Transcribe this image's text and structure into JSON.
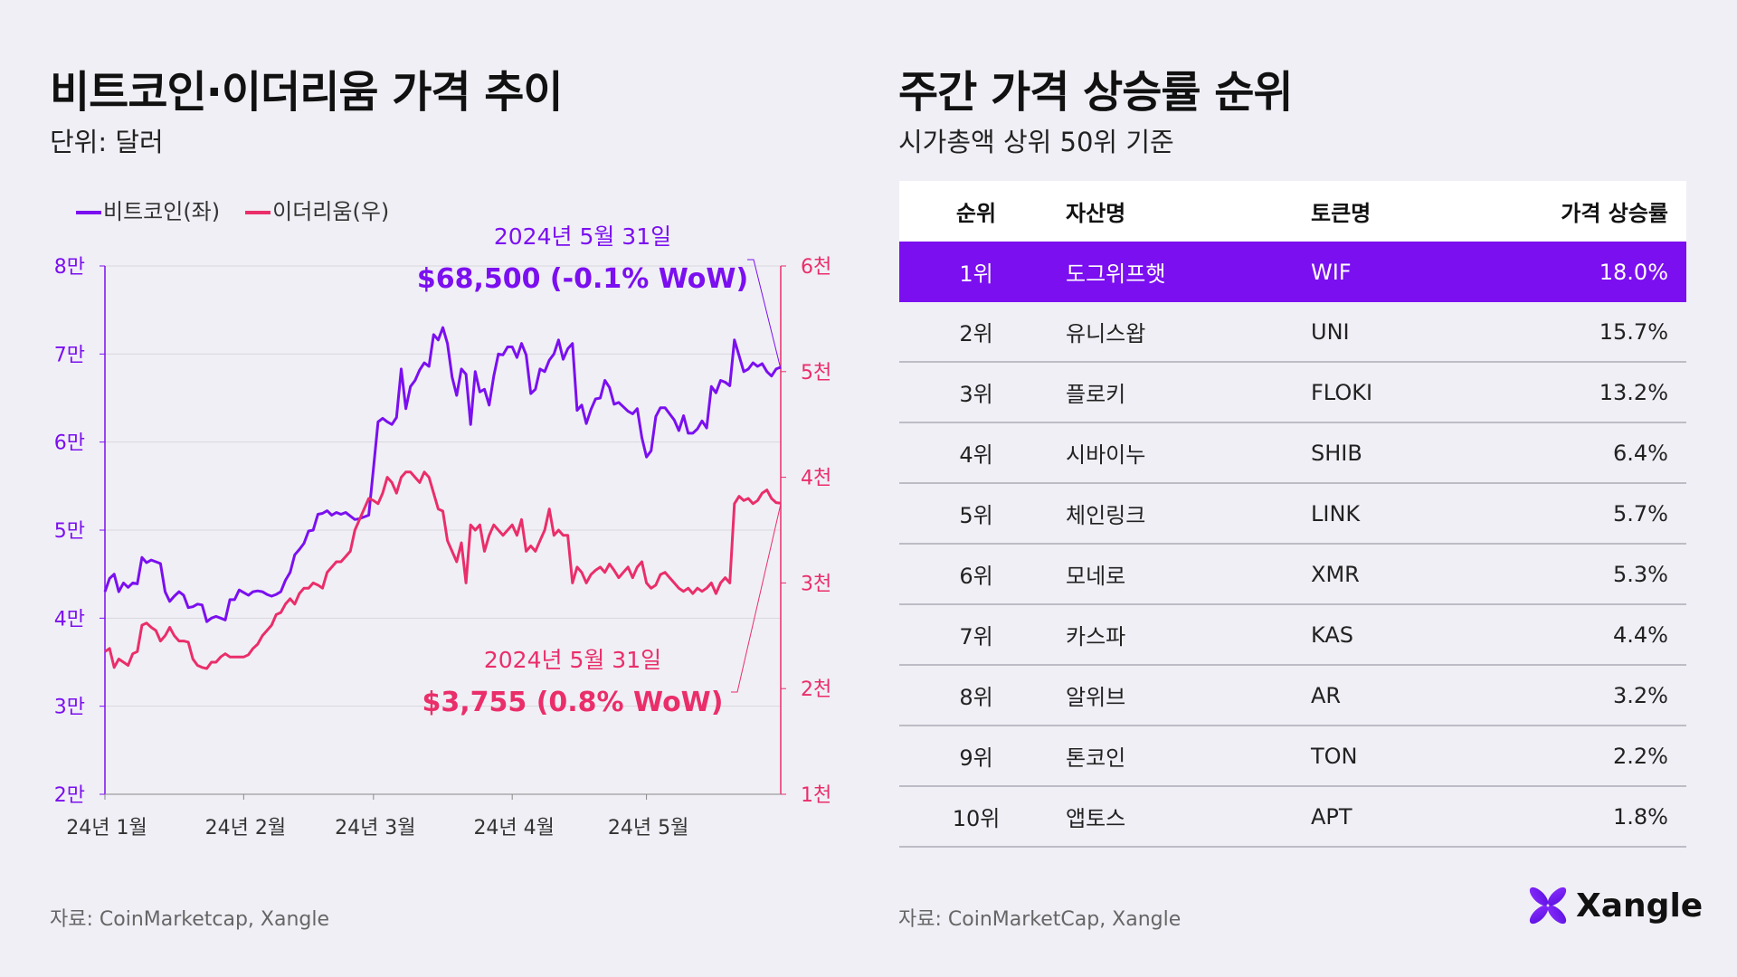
{
  "left": {
    "title": "비트코인·이더리움 가격 추이",
    "subtitle": "단위: 달러",
    "source": "자료: CoinMarketcap, Xangle"
  },
  "right": {
    "title": "주간 가격 상승률 순위",
    "subtitle": "시가총액 상위 50위 기준",
    "source": "자료: CoinMarketCap, Xangle"
  },
  "brand": {
    "name": "Xangle",
    "icon": "x-logo-icon"
  },
  "colors": {
    "btc": "#7b0ff0",
    "eth": "#ea2e6a",
    "background": "#f0eff5",
    "highlight": "#7b0ff0"
  },
  "chart_data": {
    "type": "line",
    "x_range": [
      "2024-01-01",
      "2024-05-31"
    ],
    "x_ticks": [
      "24년 1월",
      "24년 2월",
      "24년 3월",
      "24년 4월",
      "24년 5월"
    ],
    "y_left": {
      "ticks": [
        "2만",
        "3만",
        "4만",
        "5만",
        "6만",
        "7만",
        "8만"
      ],
      "range": [
        20000,
        80000
      ]
    },
    "y_right": {
      "ticks": [
        "1천",
        "2천",
        "3천",
        "4천",
        "5천",
        "6천"
      ],
      "range": [
        1000,
        6000
      ]
    },
    "grid": true,
    "legend": "top-left",
    "series": [
      {
        "name": "비트코인(좌)",
        "axis": "left",
        "unit": "천 달러",
        "values": [
          43.0,
          44.5,
          45.0,
          43.0,
          44.0,
          43.5,
          44.0,
          43.9,
          46.9,
          46.3,
          46.6,
          46.4,
          46.2,
          43.0,
          41.9,
          42.5,
          43.0,
          42.6,
          41.2,
          41.3,
          41.6,
          41.5,
          39.6,
          40.0,
          40.2,
          40.0,
          39.8,
          42.1,
          42.1,
          43.2,
          42.9,
          42.6,
          43.0,
          43.1,
          43.0,
          42.7,
          42.5,
          42.7,
          43.0,
          44.3,
          45.2,
          47.2,
          47.8,
          48.5,
          49.9,
          50.0,
          51.8,
          51.9,
          52.2,
          51.7,
          52.0,
          51.8,
          52.0,
          51.6,
          51.2,
          51.3,
          51.5,
          51.7,
          57.0,
          62.3,
          62.7,
          62.3,
          62.0,
          62.8,
          68.3,
          63.8,
          66.3,
          67.0,
          68.2,
          69.0,
          68.6,
          72.2,
          71.6,
          73.0,
          71.2,
          67.4,
          65.3,
          68.3,
          67.7,
          62.0,
          68.0,
          65.7,
          66.0,
          64.2,
          67.5,
          70.0,
          69.9,
          70.8,
          70.8,
          69.6,
          71.2,
          69.9,
          65.5,
          66.0,
          68.3,
          68.0,
          69.3,
          70.0,
          71.6,
          69.4,
          70.6,
          71.2,
          63.6,
          64.2,
          62.1,
          63.7,
          64.9,
          65.0,
          67.0,
          66.2,
          64.3,
          64.5,
          64.0,
          63.5,
          63.2,
          63.8,
          60.5,
          58.3,
          59.0,
          62.9,
          63.9,
          63.9,
          63.2,
          62.5,
          61.3,
          63.0,
          61.0,
          61.0,
          61.5,
          62.4,
          61.6,
          66.3,
          65.6,
          67.0,
          66.8,
          66.4,
          71.6,
          69.8,
          68.0,
          68.3,
          69.0,
          68.6,
          68.9,
          68.0,
          67.5,
          68.3,
          68.5
        ]
      },
      {
        "name": "이더리움(우)",
        "axis": "right",
        "unit": "천 달러",
        "values": [
          2.35,
          2.38,
          2.2,
          2.28,
          2.25,
          2.22,
          2.33,
          2.35,
          2.6,
          2.62,
          2.58,
          2.55,
          2.45,
          2.5,
          2.58,
          2.5,
          2.45,
          2.45,
          2.44,
          2.28,
          2.22,
          2.2,
          2.19,
          2.25,
          2.25,
          2.3,
          2.33,
          2.3,
          2.3,
          2.3,
          2.3,
          2.32,
          2.38,
          2.42,
          2.5,
          2.55,
          2.6,
          2.7,
          2.72,
          2.8,
          2.85,
          2.8,
          2.9,
          2.95,
          2.95,
          3.0,
          2.98,
          2.95,
          3.1,
          3.15,
          3.2,
          3.2,
          3.25,
          3.3,
          3.5,
          3.6,
          3.7,
          3.8,
          3.78,
          3.75,
          3.85,
          4.0,
          3.95,
          3.85,
          4.0,
          4.05,
          4.05,
          4.0,
          3.95,
          4.05,
          4.0,
          3.85,
          3.7,
          3.68,
          3.4,
          3.3,
          3.2,
          3.38,
          3.0,
          3.55,
          3.5,
          3.55,
          3.3,
          3.45,
          3.55,
          3.5,
          3.45,
          3.5,
          3.55,
          3.45,
          3.6,
          3.3,
          3.35,
          3.3,
          3.4,
          3.5,
          3.7,
          3.45,
          3.5,
          3.45,
          3.45,
          3.0,
          3.15,
          3.1,
          3.0,
          3.08,
          3.12,
          3.15,
          3.1,
          3.18,
          3.12,
          3.05,
          3.1,
          3.15,
          3.05,
          3.15,
          3.2,
          3.0,
          2.95,
          2.98,
          3.08,
          3.1,
          3.05,
          3.0,
          2.95,
          2.92,
          2.95,
          2.9,
          2.95,
          2.92,
          2.95,
          3.0,
          2.9,
          3.0,
          3.05,
          3.0,
          3.75,
          3.82,
          3.78,
          3.8,
          3.75,
          3.78,
          3.85,
          3.88,
          3.8,
          3.76,
          3.755
        ]
      }
    ],
    "annotations": [
      {
        "series": "비트코인(좌)",
        "date": "2024년 5월 31일",
        "label": "$68,500 (-0.1% WoW)"
      },
      {
        "series": "이더리움(우)",
        "date": "2024년 5월 31일",
        "label": "$3,755 (0.8% WoW)"
      }
    ]
  },
  "table": {
    "headers": [
      "순위",
      "자산명",
      "토큰명",
      "가격 상승률"
    ],
    "rows": [
      [
        "1위",
        "도그위프햇",
        "WIF",
        "18.0%"
      ],
      [
        "2위",
        "유니스왑",
        "UNI",
        "15.7%"
      ],
      [
        "3위",
        "플로키",
        "FLOKI",
        "13.2%"
      ],
      [
        "4위",
        "시바이누",
        "SHIB",
        "6.4%"
      ],
      [
        "5위",
        "체인링크",
        "LINK",
        "5.7%"
      ],
      [
        "6위",
        "모네로",
        "XMR",
        "5.3%"
      ],
      [
        "7위",
        "카스파",
        "KAS",
        "4.4%"
      ],
      [
        "8위",
        "알위브",
        "AR",
        "3.2%"
      ],
      [
        "9위",
        "톤코인",
        "TON",
        "2.2%"
      ],
      [
        "10위",
        "앱토스",
        "APT",
        "1.8%"
      ]
    ]
  }
}
